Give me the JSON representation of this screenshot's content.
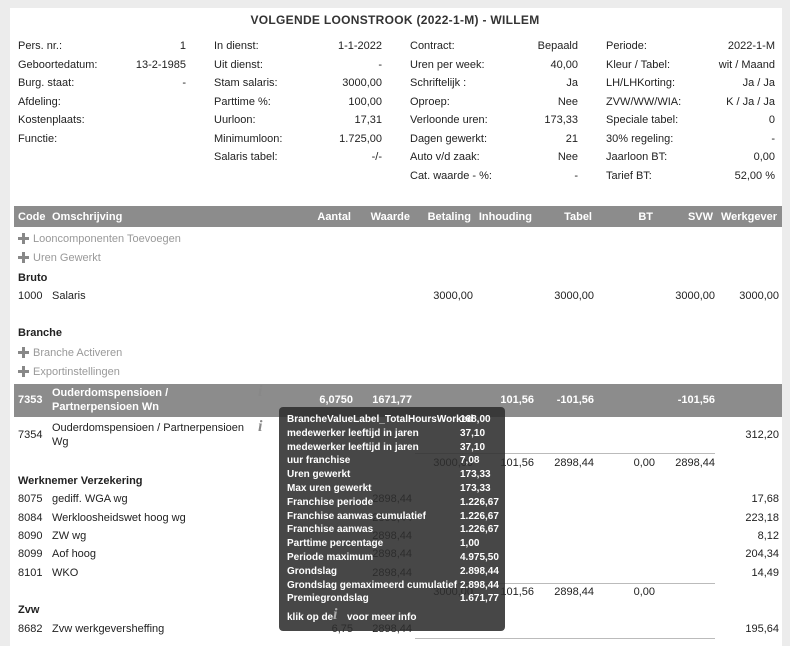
{
  "title": "VOLGENDE LOONSTROOK (2022-1-M) - WILLEM",
  "info": [
    [
      {
        "label": "Pers. nr.:",
        "value": "1"
      },
      {
        "label": "Geboortedatum:",
        "value": "13-2-1985"
      },
      {
        "label": "Burg. staat:",
        "value": "-"
      },
      {
        "label": "Afdeling:"
      },
      {
        "label": "Kostenplaats:"
      },
      {
        "label": "Functie:"
      }
    ],
    [
      {
        "label": "In dienst:",
        "value": "1-1-2022"
      },
      {
        "label": "Uit dienst:",
        "value": "-"
      },
      {
        "label": "Stam salaris:",
        "value": "3000,00"
      },
      {
        "label": "Parttime %:",
        "value": "100,00"
      },
      {
        "label": "Uurloon:",
        "value": "17,31"
      },
      {
        "label": "Minimumloon:",
        "value": "1.725,00"
      },
      {
        "label": "Salaris tabel:",
        "value": "-/-"
      }
    ],
    [
      {
        "label": "Contract:",
        "value": "Bepaald"
      },
      {
        "label": "Uren per week:",
        "value": "40,00"
      },
      {
        "label": "Schriftelijk :",
        "value": "Ja"
      },
      {
        "label": "Oproep:",
        "value": "Nee"
      },
      {
        "label": "Verloonde uren:",
        "value": "173,33"
      },
      {
        "label": "Dagen gewerkt:",
        "value": "21"
      },
      {
        "label": "Auto v/d zaak:",
        "value": "Nee"
      },
      {
        "label": "Cat. waarde - %:",
        "value": "-"
      }
    ],
    [
      {
        "label": "Periode:",
        "value": "2022-1-M"
      },
      {
        "label": "Kleur / Tabel:",
        "value": "wit / Maand"
      },
      {
        "label": "LH/LHKorting:",
        "value": "Ja / Ja"
      },
      {
        "label": "ZVW/WW/WIA:",
        "value": "K / Ja / Ja"
      },
      {
        "label": "Speciale tabel:",
        "value": "0"
      },
      {
        "label": "30% regeling:",
        "value": "-"
      },
      {
        "label": "Jaarloon BT:",
        "value": "0,00"
      },
      {
        "label": "Tarief BT:",
        "value": "52,00 %"
      }
    ]
  ],
  "table": {
    "headers": [
      "Code",
      "Omschrijving",
      "Aantal",
      "Waarde",
      "Betaling",
      "Inhouding",
      "Tabel",
      "BT",
      "SVW",
      "Werkgever"
    ],
    "rows": [
      {
        "action": "Looncomponenten Toevoegen"
      },
      {
        "action": "Uren Gewerkt"
      },
      {
        "section": "Bruto"
      },
      {
        "code": "1000",
        "description": "Salaris",
        "values": [
          null,
          null,
          "3000,00",
          null,
          "3000,00",
          null,
          "3000,00",
          "3000,00"
        ]
      },
      {
        "section": "Branche"
      },
      {
        "action": "Branche Activeren"
      },
      {
        "action": "Exportinstellingen"
      },
      {
        "code": "7353",
        "description": "Ouderdomspensioen / Partnerpensioen Wn",
        "highlighted": true,
        "values": [
          "6,0750",
          "1671,77",
          null,
          "101,56",
          "-101,56",
          null,
          "-101,56",
          null
        ]
      },
      {
        "code": "7354",
        "description": "Ouderdomspensioen / Partnerpensioen Wg",
        "values": [
          null,
          null,
          null,
          null,
          null,
          null,
          null,
          "312,20"
        ]
      },
      {
        "values": [
          null,
          null,
          "3000,00",
          "101,56",
          "2898,44",
          "0,00",
          "2898,44",
          null
        ]
      },
      {
        "section": "Werknemer Verzekering"
      },
      {
        "code": "8075",
        "description": "gediff. WGA wg",
        "values": [
          null,
          "2898,44",
          null,
          null,
          null,
          null,
          null,
          "17,68"
        ]
      },
      {
        "code": "8084",
        "description": "Werkloosheidswet hoog wg",
        "values": [
          null,
          "2898,44",
          null,
          null,
          null,
          null,
          null,
          "223,18"
        ]
      },
      {
        "code": "8090",
        "description": "ZW wg",
        "values": [
          null,
          "2898,44",
          null,
          null,
          null,
          null,
          null,
          "8,12"
        ]
      },
      {
        "code": "8099",
        "description": "Aof hoog",
        "values": [
          null,
          "2898,44",
          null,
          null,
          null,
          null,
          null,
          "204,34"
        ]
      },
      {
        "code": "8101",
        "description": "WKO",
        "values": [
          null,
          "2898,44",
          null,
          null,
          null,
          null,
          null,
          "14,49"
        ]
      },
      {
        "values": [
          null,
          null,
          "3000,00",
          "101,56",
          "2898,44",
          "0,00",
          null,
          null
        ]
      },
      {
        "section": "Zvw"
      },
      {
        "code": "8682",
        "description": "Zvw werkgeversheffing",
        "values": [
          "6,75",
          "2898,44",
          null,
          null,
          null,
          null,
          null,
          "195,64"
        ]
      }
    ]
  },
  "tooltip": {
    "rows": [
      [
        "BrancheValueLabel_TotalHoursWorked",
        "168,00"
      ],
      [
        "medewerker leeftijd in jaren",
        "37,10"
      ],
      [
        "medewerker leeftijd in jaren",
        "37,10"
      ],
      [
        "uur franchise",
        "7,08"
      ],
      [
        "Uren gewerkt",
        "173,33"
      ],
      [
        "Max uren gewerkt",
        "173,33"
      ],
      [
        "Franchise periode",
        "1.226,67"
      ],
      [
        "Franchise aanwas cumulatief",
        "1.226,67"
      ],
      [
        "Franchise aanwas",
        "1.226,67"
      ],
      [
        "Parttime percentage",
        "1,00"
      ],
      [
        "Periode maximum",
        "4.975,50"
      ],
      [
        "Grondslag",
        "2.898,44"
      ],
      [
        "Grondslag gemaximeerd cumulatief",
        "2.898,44"
      ],
      [
        "Premiegrondslag",
        "1.671,77"
      ]
    ],
    "footer": [
      "klik op de",
      "voor meer info"
    ]
  }
}
